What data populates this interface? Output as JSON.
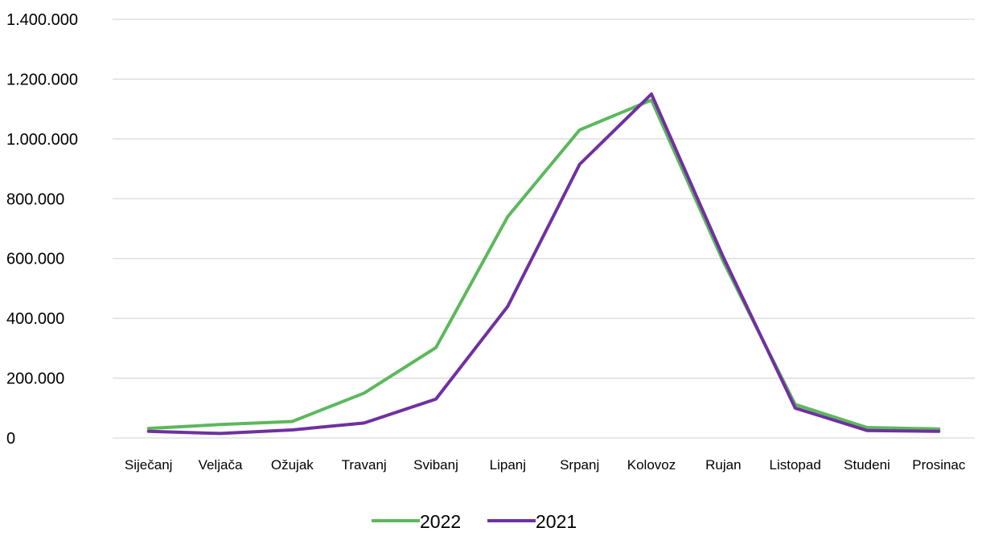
{
  "chart_data": {
    "type": "line",
    "title": "",
    "xlabel": "",
    "ylabel": "",
    "categories": [
      "Siječanj",
      "Veljača",
      "Ožujak",
      "Travanj",
      "Svibanj",
      "Lipanj",
      "Srpanj",
      "Kolovoz",
      "Rujan",
      "Listopad",
      "Studeni",
      "Prosinac"
    ],
    "ylim": [
      0,
      1400000
    ],
    "yticks": [
      0,
      200000,
      400000,
      600000,
      800000,
      1000000,
      1200000,
      1400000
    ],
    "ytick_labels": [
      "0",
      "200.000",
      "400.000",
      "600.000",
      "800.000",
      "1.000.000",
      "1.200.000",
      "1.400.000"
    ],
    "grid": true,
    "legend_position": "bottom",
    "series": [
      {
        "name": "2022",
        "color": "#5cb85c",
        "values": [
          32000,
          45000,
          55000,
          150000,
          302000,
          740000,
          1030000,
          1130000,
          590000,
          112000,
          35000,
          30000
        ]
      },
      {
        "name": "2021",
        "color": "#7030a0",
        "values": [
          22000,
          15000,
          27000,
          50000,
          130000,
          440000,
          915000,
          1150000,
          605000,
          100000,
          25000,
          22000
        ]
      }
    ]
  }
}
